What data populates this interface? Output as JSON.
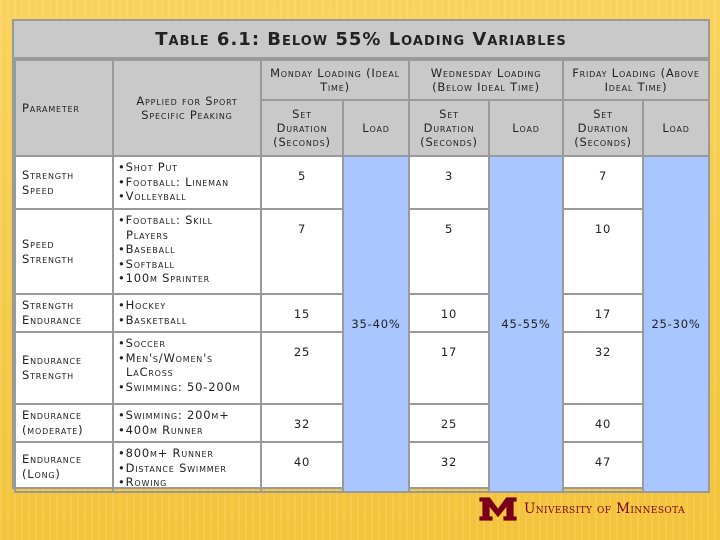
{
  "slide": {
    "title": "Table 6.1: Below 55% Loading Variables"
  },
  "table": {
    "headers": {
      "parameter": "Parameter",
      "applied": "Applied for Sport Specific Peaking",
      "monday": "Monday Loading (Ideal Time)",
      "wednesday": "Wednesday Loading (Below Ideal Time)",
      "friday": "Friday Loading (Above Ideal Time)",
      "set_duration": "Set Duration (Seconds)",
      "load": "Load"
    },
    "loads": {
      "monday": "35-40%",
      "wednesday": "45-55%",
      "friday": "25-30%"
    },
    "rows": [
      {
        "parameter": "Strength Speed",
        "sports": [
          "Shot Put",
          "Football: Lineman",
          "Volleyball"
        ],
        "monday": "5",
        "wednesday": "3",
        "friday": "7"
      },
      {
        "parameter": "Speed Strength",
        "sports": [
          "Football: Skill Players",
          "Baseball",
          "Softball",
          "100m Sprinter"
        ],
        "monday": "7",
        "wednesday": "5",
        "friday": "10"
      },
      {
        "parameter": "Strength Endurance",
        "sports": [
          "Hockey",
          "Basketball"
        ],
        "monday": "15",
        "wednesday": "10",
        "friday": "17"
      },
      {
        "parameter": "Endurance Strength",
        "sports": [
          "Soccer",
          "Men's/Women's LaCross",
          "Swimming: 50-200m"
        ],
        "monday": "25",
        "wednesday": "17",
        "friday": "32"
      },
      {
        "parameter": "Endurance (moderate)",
        "sports": [
          "Swimming: 200m+",
          "400m Runner"
        ],
        "monday": "32",
        "wednesday": "25",
        "friday": "40"
      },
      {
        "parameter": "Endurance (Long)",
        "sports": [
          "800m+ Runner",
          "Distance Swimmer",
          "Rowing"
        ],
        "monday": "40",
        "wednesday": "32",
        "friday": "47"
      }
    ]
  },
  "footer": {
    "logo_text": "University of Minnesota",
    "logo_icon": "umn-m-logo",
    "brand_color": "#7a0019"
  }
}
